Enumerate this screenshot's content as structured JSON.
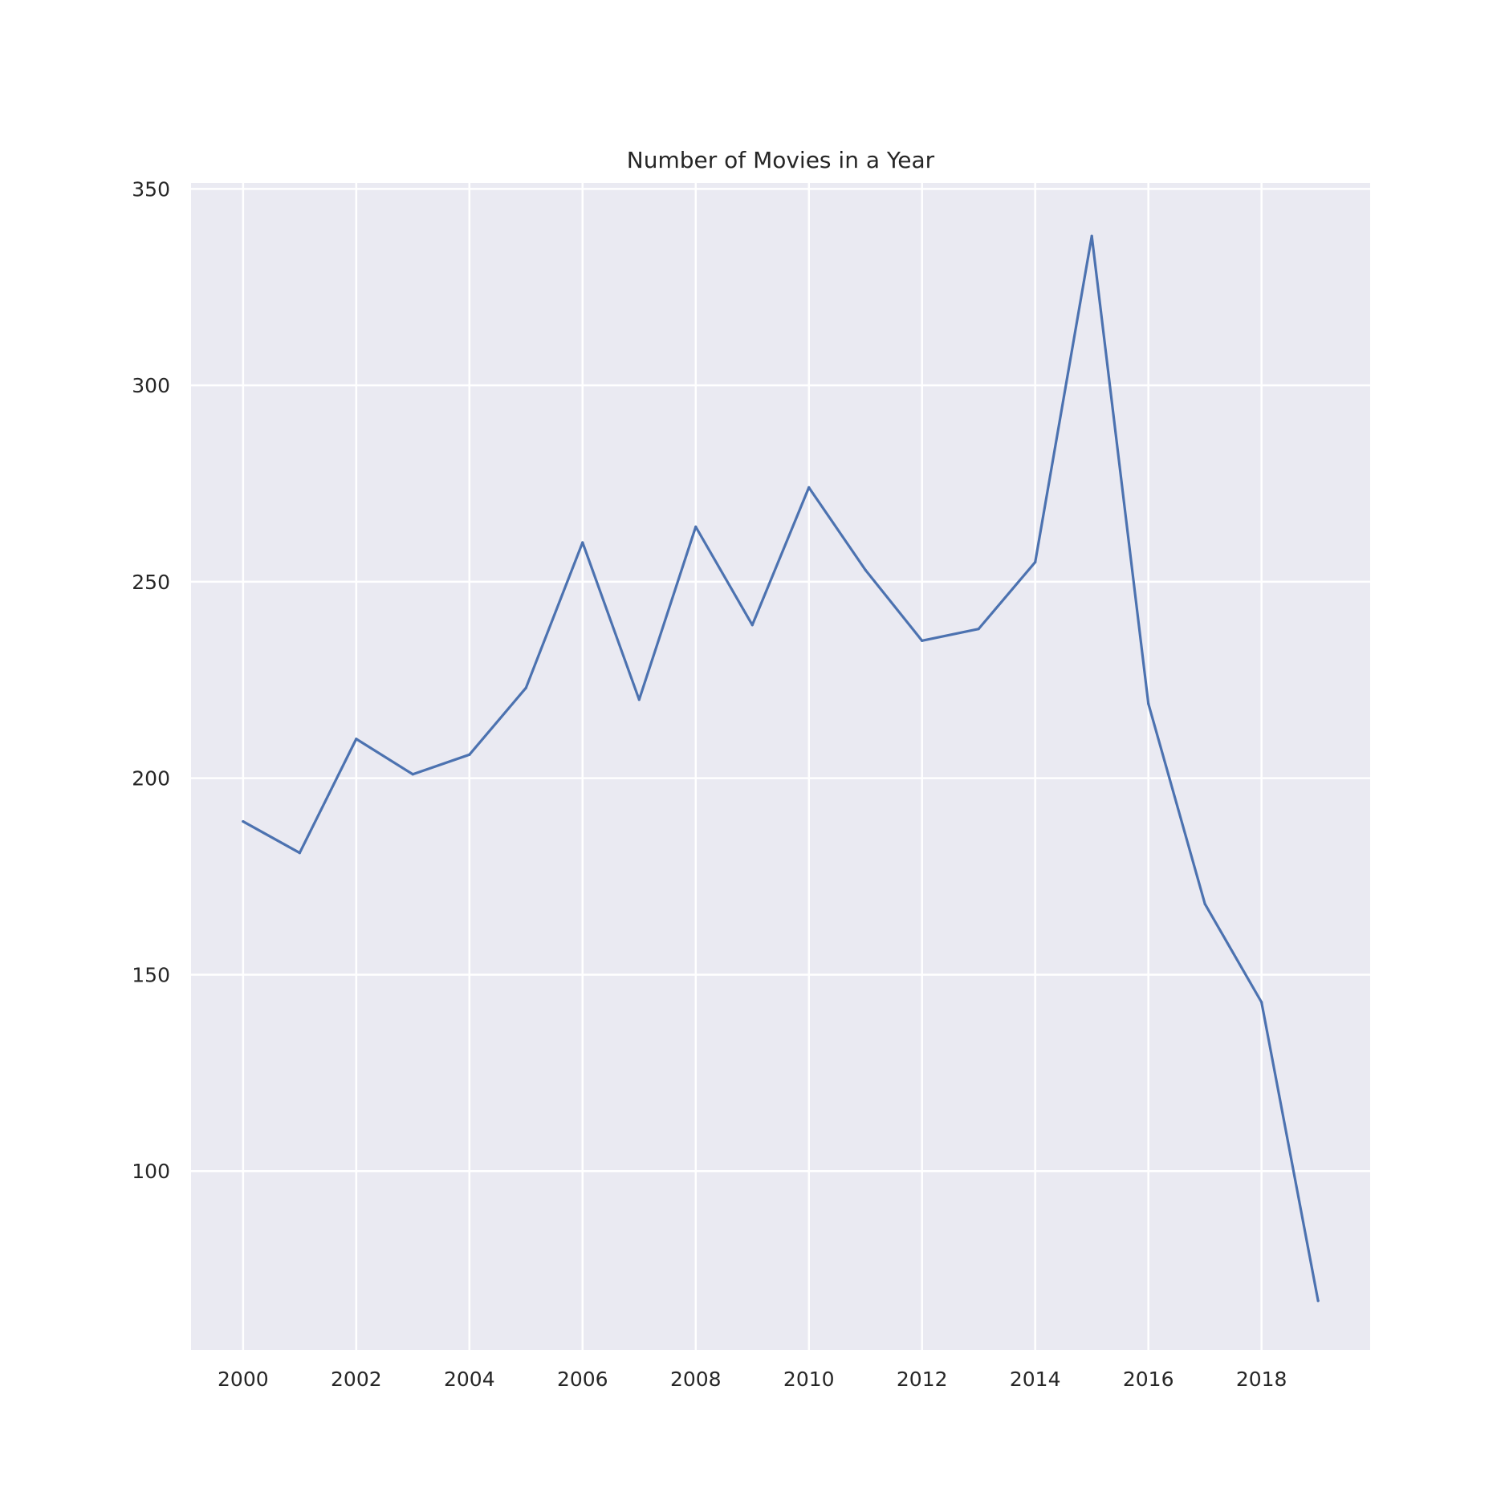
{
  "chart_data": {
    "type": "line",
    "title": "Number of Movies in a Year",
    "xlabel": "",
    "ylabel": "",
    "x": [
      2000,
      2001,
      2002,
      2003,
      2004,
      2005,
      2006,
      2007,
      2008,
      2009,
      2010,
      2011,
      2012,
      2013,
      2014,
      2015,
      2016,
      2017,
      2018,
      2019
    ],
    "series": [
      {
        "values": [
          189,
          181,
          210,
          201,
          206,
          223,
          260,
          220,
          264,
          239,
          274,
          253,
          235,
          238,
          255,
          338,
          219,
          168,
          143,
          67
        ],
        "color": "#4c72b0"
      }
    ],
    "xlim": [
      1999.08,
      2019.92
    ],
    "ylim": [
      54.5,
      351.5
    ],
    "xticks": [
      2000,
      2002,
      2004,
      2006,
      2008,
      2010,
      2012,
      2014,
      2016,
      2018
    ],
    "yticks": [
      100,
      150,
      200,
      250,
      300,
      350
    ],
    "grid": true,
    "legend": "none",
    "style": {
      "background": "#eaeaf2",
      "grid_color": "#ffffff",
      "text_color": "#262626"
    }
  }
}
